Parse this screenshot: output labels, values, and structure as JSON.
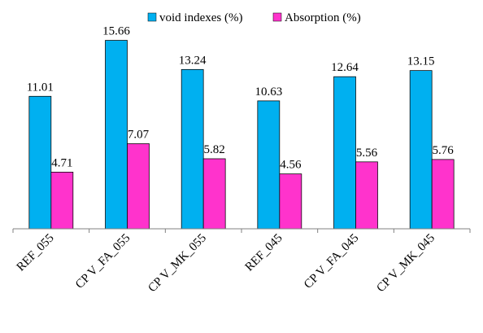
{
  "chart_data": {
    "type": "bar",
    "categories": [
      "REF_055",
      "CP V_FA_055",
      "CP V_MK_055",
      "REF_045",
      "CP V_FA_045",
      "CP V_MK_045"
    ],
    "series": [
      {
        "name": "void indexes  (%)",
        "color": "#00b0f0",
        "values": [
          11.01,
          15.66,
          13.24,
          10.63,
          12.64,
          13.15
        ],
        "labels": [
          "11.01",
          "15.66",
          "13.24",
          "10.63",
          "12.64",
          "13.15"
        ]
      },
      {
        "name": "Absorption (%)",
        "color": "#ff33cc",
        "values": [
          4.71,
          7.07,
          5.82,
          4.56,
          5.56,
          5.76
        ],
        "labels": [
          "4.71",
          "7.07",
          "5.82",
          "4.56",
          "5.56",
          "5.76"
        ]
      }
    ],
    "title": "",
    "xlabel": "",
    "ylabel": "",
    "ylim": [
      0,
      17.5
    ],
    "grid": false,
    "legend_position": "top"
  }
}
